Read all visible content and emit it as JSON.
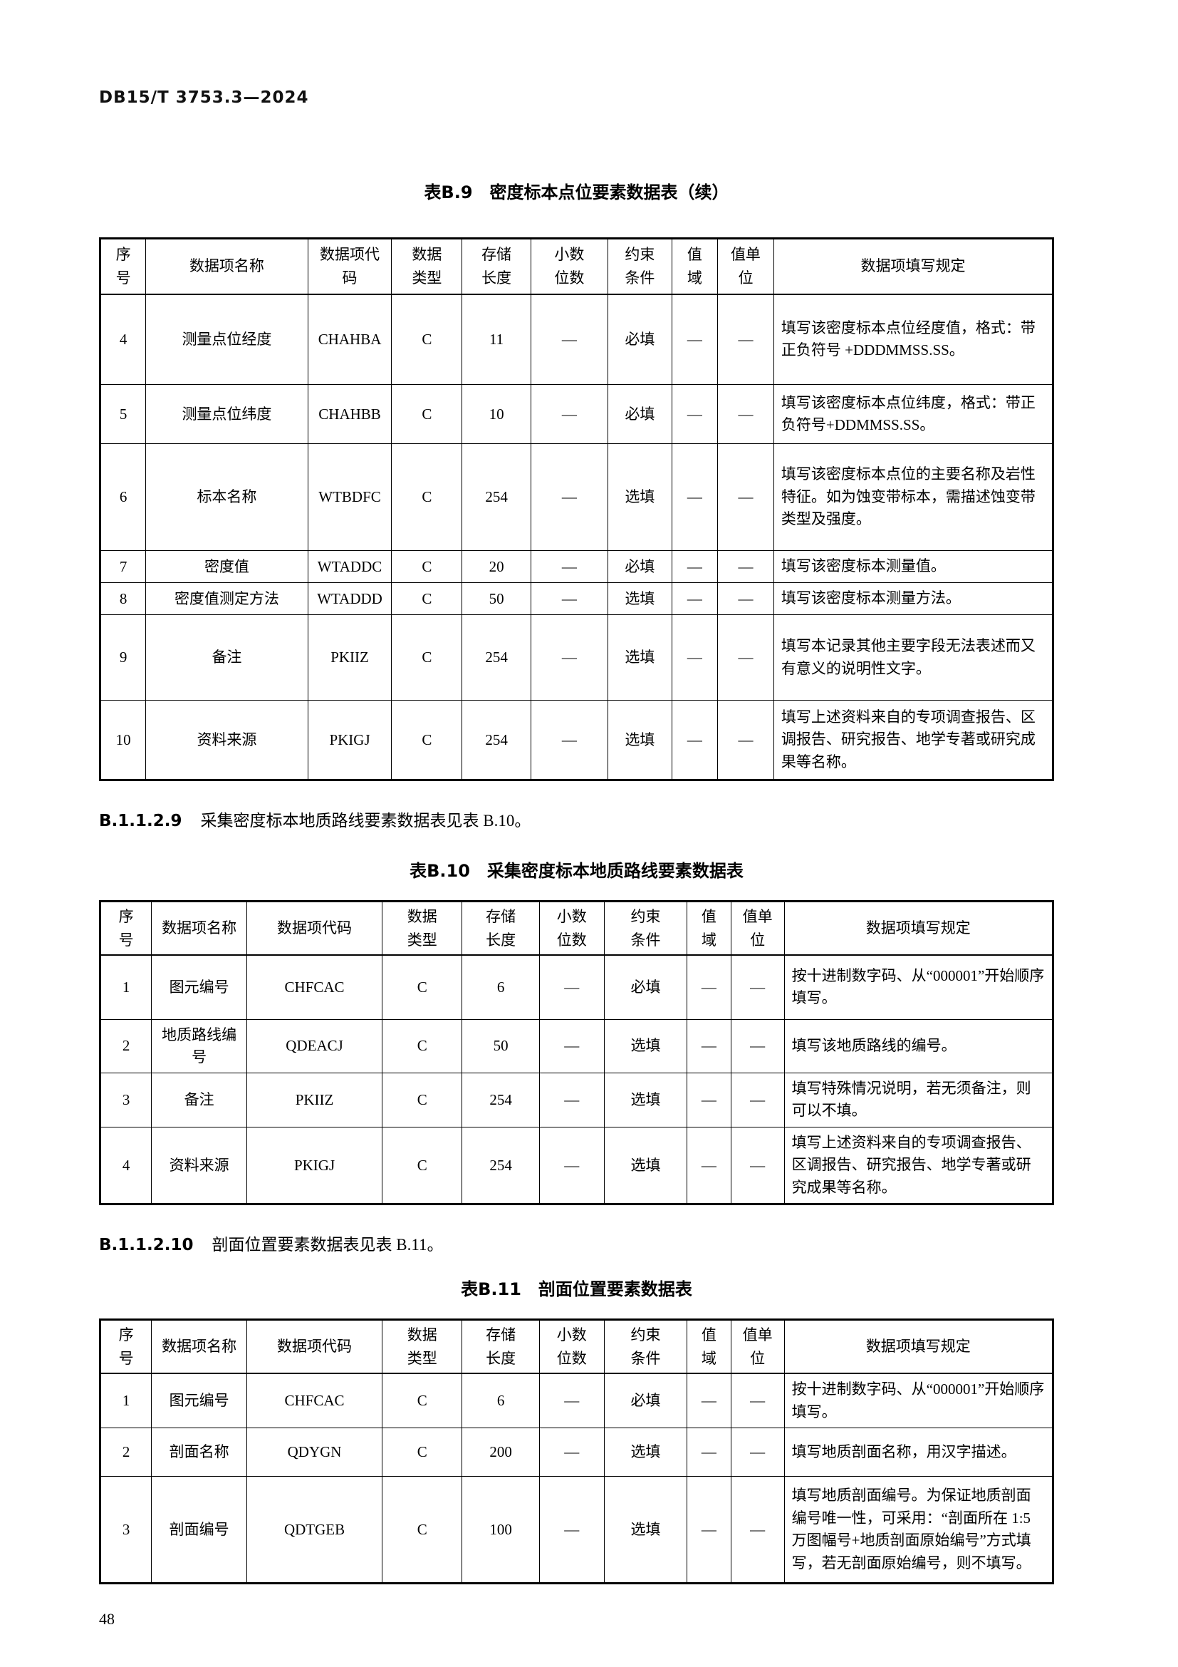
{
  "doc_number": "DB15/T 3753.3—2024",
  "page_number": "48",
  "columns_b9": [
    "序\n号",
    "数据项名称",
    "数据项代\n码",
    "数据\n类型",
    "存储\n长度",
    "小数\n位数",
    "约束\n条件",
    "值\n域",
    "值单\n位",
    "数据项填写规定"
  ],
  "columns_b10_b11": [
    "序\n号",
    "数据项名称",
    "数据项代码",
    "数据\n类型",
    "存储\n长度",
    "小数\n位数",
    "约束\n条件",
    "值\n域",
    "值单\n位",
    "数据项填写规定"
  ],
  "clauses": [
    {
      "no": "B.1.1.2.9",
      "text": "采集密度标本地质路线要素数据表见表 B.10。"
    },
    {
      "no": "B.1.1.2.10",
      "text": "剖面位置要素数据表见表 B.11。"
    }
  ],
  "tables": [
    {
      "title": "表B.9　密度标本点位要素数据表（续）",
      "columns_key": "columns_b9",
      "rows": [
        [
          "4",
          "测量点位经度",
          "CHAHBA",
          "C",
          "11",
          "—",
          "必填",
          "—",
          "—",
          "填写该密度标本点位经度值，格式：带正负符号 +DDDMMSS.SS。"
        ],
        [
          "5",
          "测量点位纬度",
          "CHAHBB",
          "C",
          "10",
          "—",
          "必填",
          "—",
          "—",
          "填写该密度标本点位纬度，格式：带正负符号+DDMMSS.SS。"
        ],
        [
          "6",
          "标本名称",
          "WTBDFC",
          "C",
          "254",
          "—",
          "选填",
          "—",
          "—",
          "填写该密度标本点位的主要名称及岩性特征。如为蚀变带标本，需描述蚀变带类型及强度。"
        ],
        [
          "7",
          "密度值",
          "WTADDC",
          "C",
          "20",
          "—",
          "必填",
          "—",
          "—",
          "填写该密度标本测量值。"
        ],
        [
          "8",
          "密度值测定方法",
          "WTADDD",
          "C",
          "50",
          "—",
          "选填",
          "—",
          "—",
          "填写该密度标本测量方法。"
        ],
        [
          "9",
          "备注",
          "PKIIZ",
          "C",
          "254",
          "—",
          "选填",
          "—",
          "—",
          "填写本记录其他主要字段无法表述而又有意义的说明性文字。"
        ],
        [
          "10",
          "资料来源",
          "PKIGJ",
          "C",
          "254",
          "—",
          "选填",
          "—",
          "—",
          "填写上述资料来自的专项调查报告、区调报告、研究报告、地学专著或研究成果等名称。"
        ]
      ]
    },
    {
      "title": "表B.10　采集密度标本地质路线要素数据表",
      "columns_key": "columns_b10_b11",
      "rows": [
        [
          "1",
          "图元编号",
          "CHFCAC",
          "C",
          "6",
          "—",
          "必填",
          "—",
          "—",
          "按十进制数字码、从“000001”开始顺序填写。"
        ],
        [
          "2",
          "地质路线编号",
          "QDEACJ",
          "C",
          "50",
          "—",
          "选填",
          "—",
          "—",
          "填写该地质路线的编号。"
        ],
        [
          "3",
          "备注",
          "PKIIZ",
          "C",
          "254",
          "—",
          "选填",
          "—",
          "—",
          "填写特殊情况说明，若无须备注，则可以不填。"
        ],
        [
          "4",
          "资料来源",
          "PKIGJ",
          "C",
          "254",
          "—",
          "选填",
          "—",
          "—",
          "填写上述资料来自的专项调查报告、区调报告、研究报告、地学专著或研究成果等名称。"
        ]
      ]
    },
    {
      "title": "表B.11　剖面位置要素数据表",
      "columns_key": "columns_b10_b11",
      "rows": [
        [
          "1",
          "图元编号",
          "CHFCAC",
          "C",
          "6",
          "—",
          "必填",
          "—",
          "—",
          "按十进制数字码、从“000001”开始顺序填写。"
        ],
        [
          "2",
          "剖面名称",
          "QDYGN",
          "C",
          "200",
          "—",
          "选填",
          "—",
          "—",
          "填写地质剖面名称，用汉字描述。"
        ],
        [
          "3",
          "剖面编号",
          "QDTGEB",
          "C",
          "100",
          "—",
          "选填",
          "—",
          "—",
          "填写地质剖面编号。为保证地质剖面编号唯一性，可采用：“剖面所在 1:5 万图幅号+地质剖面原始编号”方式填写，若无剖面原始编号，则不填写。"
        ]
      ]
    }
  ]
}
